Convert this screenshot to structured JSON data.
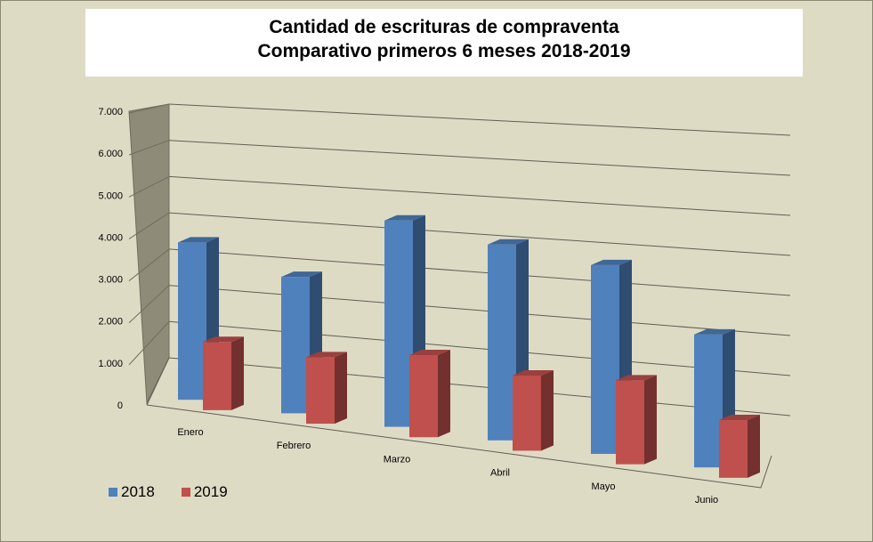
{
  "chart_data": {
    "type": "bar",
    "title_line1": "Cantidad de escrituras de compraventa",
    "title_line2": "Comparativo primeros 6 meses 2018-2019",
    "categories": [
      "Enero",
      "Febrero",
      "Marzo",
      "Abril",
      "Mayo",
      "Junio"
    ],
    "series": [
      {
        "name": "2018",
        "color": "#4f81bd",
        "values": [
          4500,
          3900,
          5900,
          5600,
          5400,
          3800
        ]
      },
      {
        "name": "2019",
        "color": "#c0504d",
        "values": [
          1950,
          1900,
          2350,
          2150,
          2400,
          1650
        ]
      }
    ],
    "yticks": [
      "0",
      "1.000",
      "2.000",
      "3.000",
      "4.000",
      "5.000",
      "6.000",
      "7.000"
    ],
    "ylim": [
      0,
      7000
    ],
    "grid": true,
    "legend_position": "bottom-left",
    "xlabel": "",
    "ylabel": ""
  }
}
